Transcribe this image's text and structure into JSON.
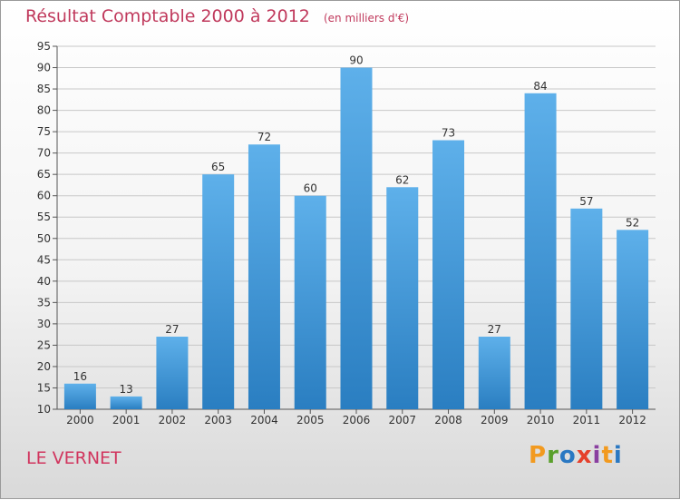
{
  "title": "Résultat Comptable 2000 à 2012",
  "unit": "(en milliers d'€)",
  "commune": "LE VERNET",
  "logo": {
    "text": "Proxiti",
    "colors": [
      "#f29a1f",
      "#5aa02c",
      "#2a78c2",
      "#e5402b",
      "#8a3fa0",
      "#f29a1f",
      "#2a78c2"
    ]
  },
  "colors": {
    "bar_light": "#5eb0ea",
    "bar_dark": "#2a7ec1",
    "grid": "#c8c8c8",
    "title": "#c0395c"
  },
  "chart_data": {
    "type": "bar",
    "title": "Résultat Comptable 2000 à 2012",
    "ylabel": "",
    "xlabel": "",
    "categories": [
      "2000",
      "2001",
      "2002",
      "2003",
      "2004",
      "2005",
      "2006",
      "2007",
      "2008",
      "2009",
      "2010",
      "2011",
      "2012"
    ],
    "values": [
      16,
      13,
      27,
      65,
      72,
      60,
      90,
      62,
      73,
      27,
      84,
      57,
      52
    ],
    "ylim": [
      10,
      95
    ],
    "yticks": [
      10,
      15,
      20,
      25,
      30,
      35,
      40,
      45,
      50,
      55,
      60,
      65,
      70,
      75,
      80,
      85,
      90,
      95
    ],
    "grid": true
  }
}
